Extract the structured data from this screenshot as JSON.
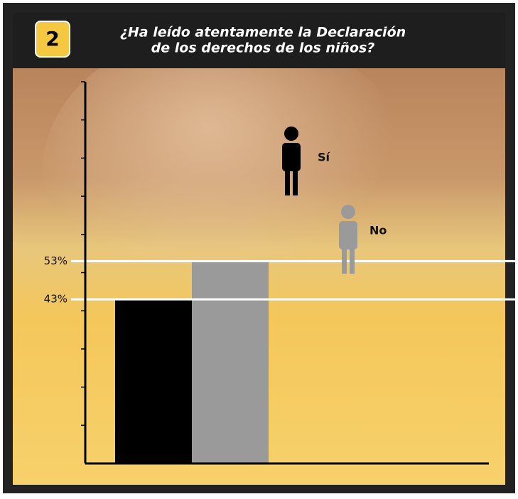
{
  "badge": "2",
  "chart_data": {
    "type": "bar",
    "title": [
      "¿Ha leído atentamente la Declaración",
      "de los derechos de los niños?"
    ],
    "categories": [
      "Sí",
      "No"
    ],
    "values": [
      43,
      53
    ],
    "colors": [
      "#000000",
      "#9a9a9a"
    ],
    "ylim": [
      0,
      100
    ],
    "yticks": [
      {
        "value": 43,
        "label": "43%"
      },
      {
        "value": 53,
        "label": "53%"
      }
    ],
    "minor_yticks": [
      10,
      20,
      30,
      40,
      50,
      60,
      70,
      80,
      90,
      100
    ],
    "grid": true
  }
}
